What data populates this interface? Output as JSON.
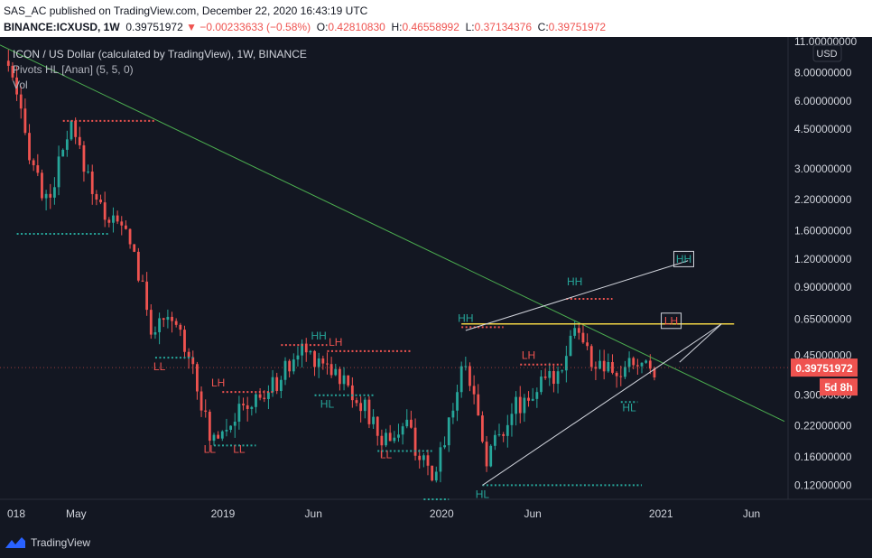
{
  "header": {
    "publish_line": "SAS_AC published on TradingView.com, December 22, 2020 16:43:19 UTC",
    "symbol": "BINANCE:ICXUSD, 1W",
    "last": "0.39751972",
    "change": "▼ −0.00233633 (−0.58%)",
    "o_label": "O:",
    "o": "0.42810830",
    "h_label": "H:",
    "h": "0.46558992",
    "l_label": "L:",
    "l": "0.37134376",
    "c_label": "C:",
    "c": "0.39751972"
  },
  "legend": {
    "title": "ICON / US Dollar (calculated by TradingView), 1W, BINANCE",
    "indicator": "Pivots HL [Anan] (5, 5, 0)",
    "volume": "Vol"
  },
  "currency": "USD",
  "price_tag": "0.39751972",
  "countdown": "5d 8h",
  "brand": "TradingView",
  "colors": {
    "bg": "#131722",
    "up": "#26a69a",
    "down": "#ef5350",
    "text": "#d1d4dc",
    "grid": "#1e222d",
    "trend": "#4caf50",
    "resistance": "#f2d544",
    "triangle": "#d1d4dc",
    "hh": "#2e7d32",
    "lh": "#b71c1c"
  },
  "chart_data": {
    "type": "candlestick",
    "y_scale": "log",
    "ylim": [
      0.104,
      11.5
    ],
    "y_ticks": [
      "11.00000000",
      "8.00000000",
      "6.00000000",
      "4.50000000",
      "3.00000000",
      "2.20000000",
      "1.60000000",
      "1.20000000",
      "0.90000000",
      "0.65000000",
      "0.45000000",
      "0.30000000",
      "0.22000000",
      "0.16000000",
      "0.12000000"
    ],
    "x_ticks": [
      "018",
      "May",
      "2019",
      "Jun",
      "2020",
      "Jun",
      "2021",
      "Jun"
    ],
    "close_series": [
      {
        "date": "2018-01-08",
        "value": 8.6
      },
      {
        "date": "2018-02-05",
        "value": 4.2
      },
      {
        "date": "2018-03-12",
        "value": 2.1
      },
      {
        "date": "2018-04-23",
        "value": 4.5
      },
      {
        "date": "2018-06-11",
        "value": 2.0
      },
      {
        "date": "2018-07-30",
        "value": 1.5
      },
      {
        "date": "2018-09-03",
        "value": 0.6
      },
      {
        "date": "2018-10-15",
        "value": 0.62
      },
      {
        "date": "2018-11-12",
        "value": 0.42
      },
      {
        "date": "2018-12-10",
        "value": 0.19
      },
      {
        "date": "2019-01-07",
        "value": 0.23
      },
      {
        "date": "2019-03-18",
        "value": 0.31
      },
      {
        "date": "2019-05-13",
        "value": 0.48
      },
      {
        "date": "2019-06-24",
        "value": 0.42
      },
      {
        "date": "2019-08-19",
        "value": 0.28
      },
      {
        "date": "2019-09-23",
        "value": 0.19
      },
      {
        "date": "2019-11-04",
        "value": 0.22
      },
      {
        "date": "2019-12-16",
        "value": 0.12
      },
      {
        "date": "2020-01-06",
        "value": 0.2
      },
      {
        "date": "2020-02-10",
        "value": 0.44
      },
      {
        "date": "2020-03-16",
        "value": 0.16
      },
      {
        "date": "2020-04-27",
        "value": 0.26
      },
      {
        "date": "2020-06-08",
        "value": 0.32
      },
      {
        "date": "2020-07-13",
        "value": 0.38
      },
      {
        "date": "2020-08-10",
        "value": 0.62
      },
      {
        "date": "2020-09-07",
        "value": 0.42
      },
      {
        "date": "2020-10-19",
        "value": 0.36
      },
      {
        "date": "2020-11-16",
        "value": 0.42
      },
      {
        "date": "2020-12-21",
        "value": 0.3975
      }
    ],
    "pivot_labels": [
      {
        "text": "LL",
        "date": "2018-09-17",
        "value": 0.44,
        "type": "low"
      },
      {
        "text": "LL",
        "date": "2018-12-10",
        "value": 0.19,
        "type": "low"
      },
      {
        "text": "LH",
        "date": "2018-12-24",
        "value": 0.31,
        "type": "high"
      },
      {
        "text": "LL",
        "date": "2019-01-28",
        "value": 0.19,
        "type": "low"
      },
      {
        "text": "HH",
        "date": "2019-06-10",
        "value": 0.5,
        "type": "high"
      },
      {
        "text": "LH",
        "date": "2019-07-08",
        "value": 0.47,
        "type": "high"
      },
      {
        "text": "HL",
        "date": "2019-06-24",
        "value": 0.3,
        "type": "low"
      },
      {
        "text": "LL",
        "date": "2019-09-30",
        "value": 0.18,
        "type": "low"
      },
      {
        "text": "HH",
        "date": "2020-02-10",
        "value": 0.6,
        "type": "high"
      },
      {
        "text": "HL",
        "date": "2020-03-09",
        "value": 0.12,
        "type": "low"
      },
      {
        "text": "LH",
        "date": "2020-05-25",
        "value": 0.41,
        "type": "high"
      },
      {
        "text": "HH",
        "date": "2020-08-10",
        "value": 0.87,
        "type": "high"
      },
      {
        "text": "HL",
        "date": "2020-11-09",
        "value": 0.29,
        "type": "low"
      },
      {
        "text": "HH",
        "date": "2021-02-08",
        "value": 1.2,
        "type": "box"
      },
      {
        "text": "LH",
        "date": "2021-01-18",
        "value": 0.64,
        "type": "box"
      }
    ],
    "drawings": {
      "downtrend": [
        {
          "date": "2017-12-25",
          "value": 10.6
        },
        {
          "date": "2021-07-26",
          "value": 0.23
        }
      ],
      "resistance_value": 0.62,
      "triangle_upper": [
        {
          "date": "2020-02-10",
          "value": 0.58
        },
        {
          "date": "2021-02-15",
          "value": 1.18
        }
      ],
      "triangle_lower": [
        {
          "date": "2020-03-09",
          "value": 0.12
        },
        {
          "date": "2021-04-12",
          "value": 0.62
        }
      ]
    }
  }
}
